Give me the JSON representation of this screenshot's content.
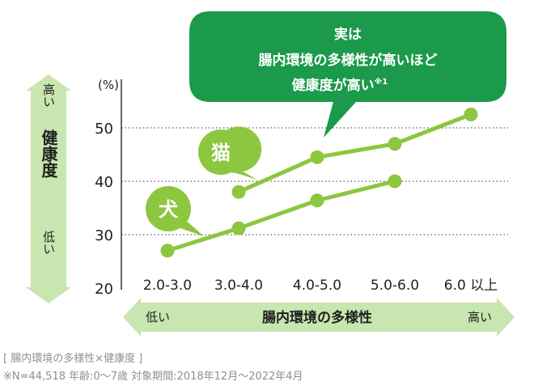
{
  "chart_data": {
    "type": "line",
    "categories": [
      "2.0-3.0",
      "3.0-4.0",
      "4.0-5.0",
      "5.0-6.0",
      "6.0 以上"
    ],
    "series": [
      {
        "name": "猫",
        "values": [
          null,
          38,
          44.5,
          47,
          52.5
        ]
      },
      {
        "name": "犬",
        "values": [
          27,
          31.2,
          36.4,
          40,
          null
        ]
      }
    ],
    "ylim": [
      20,
      55
    ],
    "yticks": [
      20,
      30,
      40,
      50
    ],
    "ylabel_unit": "(%)",
    "y_axis_title": "健康度",
    "y_axis_high": "高い",
    "y_axis_low": "低い",
    "x_axis_title": "腸内環境の多様性",
    "x_axis_low": "低い",
    "x_axis_high": "高い",
    "callout_lines": [
      "実は",
      "腸内環境の多様性が高いほど",
      "健康度が高い"
    ],
    "callout_note": "※1",
    "colors": {
      "line": "#8dc63f",
      "bubble": "#1a9a4a",
      "arrow": "#c8e6b0",
      "grid": "#333333"
    }
  },
  "caption": {
    "line1": "[ 腸内環境の多様性×健康度 ]",
    "line2": "※N=44,518 年齢:0～7歳 対象期間:2018年12月～2022年4月"
  }
}
